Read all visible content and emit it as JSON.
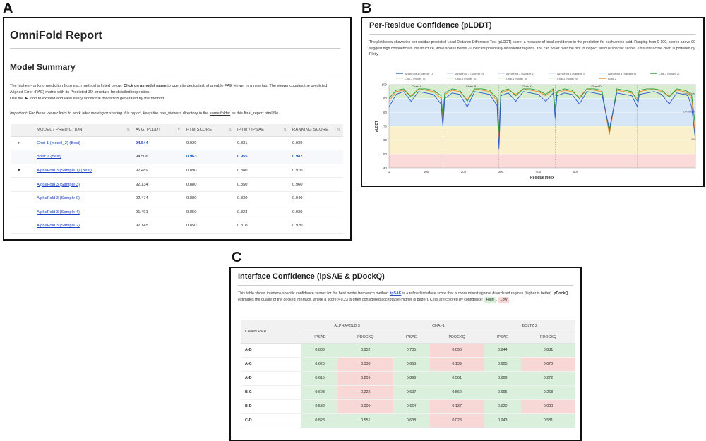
{
  "letters": {
    "a": "A",
    "b": "B",
    "c": "C"
  },
  "panel_a": {
    "title": "OmniFold Report",
    "section_title": "Model Summary",
    "desc_1": "The highest-ranking prediction from each method is listed below. ",
    "desc_bold": "Click on a model name",
    "desc_2": " to open its dedicated, shareable PAE viewer in a new tab. The viewer couples the predicted Aligned Error (PAE) matrix with its Predicted 3D structure for detailed inspection.",
    "desc_3": "Use the ► icon to expand and view every additional prediction generated by the method.",
    "note_1": "Important: For these viewer links to work after moving or sharing this report, keep the ",
    "note_code": "pae_viewers",
    "note_2": " directory in the ",
    "note_link": "same folder",
    "note_3": " as this ",
    "note_file": "final_report.html",
    "note_4": " file.",
    "columns": [
      "MODEL / PREDICTION",
      "AVG. PLDDT",
      "PTM SCORE",
      "IPTM / IPSAE",
      "RANKING SCORE"
    ],
    "rows": [
      {
        "toggle": "►",
        "name": "Chai-1 (model_2) (Best)",
        "plddt": "94.544",
        "ptm": "0.929",
        "iptm": "0.831",
        "rank": "0.939",
        "alt": false,
        "blue": [
          true,
          false,
          false,
          false
        ]
      },
      {
        "toggle": "",
        "name": "Boltz 2 (Best)",
        "plddt": "94.506",
        "ptm": "0.963",
        "iptm": "0.955",
        "rank": "0.947",
        "alt": true,
        "blue": [
          false,
          true,
          true,
          true
        ]
      },
      {
        "toggle": "▼",
        "name": "AlphaFold 3 (Sample 1) (Best)",
        "plddt": "92.489",
        "ptm": "0.890",
        "iptm": "0.880",
        "rank": "0.970",
        "alt": false,
        "blue": [
          false,
          false,
          false,
          false
        ]
      },
      {
        "toggle": "",
        "name": "AlphaFold 3 (Sample 3)",
        "plddt": "92.134",
        "ptm": "0.880",
        "iptm": "0.850",
        "rank": "0.960",
        "alt": false,
        "blue": [
          false,
          false,
          false,
          false
        ]
      },
      {
        "toggle": "",
        "name": "AlphaFold 3 (Sample 0)",
        "plddt": "92.474",
        "ptm": "0.880",
        "iptm": "0.830",
        "rank": "0.940",
        "alt": false,
        "blue": [
          false,
          false,
          false,
          false
        ]
      },
      {
        "toggle": "",
        "name": "AlphaFold 3 (Sample 4)",
        "plddt": "91.491",
        "ptm": "0.850",
        "iptm": "0.823",
        "rank": "0.930",
        "alt": false,
        "blue": [
          false,
          false,
          false,
          false
        ]
      },
      {
        "toggle": "",
        "name": "AlphaFold 3 (Sample 2)",
        "plddt": "92.145",
        "ptm": "0.850",
        "iptm": "0.810",
        "rank": "0.920",
        "alt": false,
        "blue": [
          false,
          false,
          false,
          false
        ]
      }
    ]
  },
  "panel_b": {
    "title": "Per-Residue Confidence (pLDDT)",
    "desc": "The plot below shows the per-residue predicted Local Distance Difference Test (pLDDT) score, a measure of local confidence in the prediction for each amino acid. Ranging from 0-100, scores above 90 suggest high confidence in the structure, while scores below 70 indicate potentially disordered regions. You can hover over the plot to inspect residue-specific scores. This interactive chart is powered by Plotly.",
    "legend": [
      {
        "label": "AlphaFold 3 (Sample 1)",
        "color": "#2a5ac8",
        "w": 1.4
      },
      {
        "label": "AlphaFold 3 (Sample 0)",
        "color": "#9fb8e8",
        "w": 0.8
      },
      {
        "label": "AlphaFold 3 (Sample 2)",
        "color": "#a9c2ea",
        "w": 0.8
      },
      {
        "label": "AlphaFold 3 (Sample 3)",
        "color": "#b7cdef",
        "w": 0.8
      },
      {
        "label": "AlphaFold 3 (Sample 4)",
        "color": "#c2d4f0",
        "w": 0.8
      },
      {
        "label": "Chai-1 (model_2)",
        "color": "#2e9a3a",
        "w": 1.4
      },
      {
        "label": "Chai-1 (model_0)",
        "color": "#b6dcb6",
        "w": 0.8
      },
      {
        "label": "Chai-1 (model_1)",
        "color": "#c2e2c2",
        "w": 0.8
      },
      {
        "label": "Chai-1 (model_3)",
        "color": "#cce7cc",
        "w": 0.8
      },
      {
        "label": "Chai-1 (model_4)",
        "color": "#d6ecd6",
        "w": 0.8
      },
      {
        "label": "Boltz 2",
        "color": "#f08a2a",
        "w": 1.4
      }
    ]
  },
  "chart_data": {
    "type": "line",
    "xlabel": "Residue Index",
    "ylabel": "pLDDT",
    "xlim": [
      1,
      820
    ],
    "ylim": [
      40,
      100
    ],
    "xticks": [
      1,
      100,
      200,
      300,
      400,
      500
    ],
    "yticks": [
      40,
      50,
      60,
      70,
      80,
      90,
      100
    ],
    "bands": [
      {
        "from": 90,
        "to": 100,
        "color": "#d8ecd2"
      },
      {
        "from": 70,
        "to": 90,
        "color": "#d7e6f7"
      },
      {
        "from": 50,
        "to": 70,
        "color": "#fbf0cc"
      },
      {
        "from": 40,
        "to": 50,
        "color": "#fbdada"
      }
    ],
    "chain_boundaries": [
      145,
      295,
      445,
      665
    ],
    "chain_labels": [
      {
        "label": "Chain A",
        "x": 75
      },
      {
        "label": "Chain B",
        "x": 220
      },
      {
        "label": "Chain C",
        "x": 370
      },
      {
        "label": "Chain D",
        "x": 555
      }
    ],
    "band_labels": [
      {
        "label": "Very High",
        "y": 93
      },
      {
        "label": "Confident",
        "y": 80
      },
      {
        "label": "Low",
        "y": 60
      }
    ],
    "series": [
      {
        "name": "Boltz 2",
        "color": "#f08a2a",
        "x": [
          1,
          20,
          40,
          60,
          80,
          100,
          120,
          140,
          145,
          150,
          170,
          190,
          210,
          230,
          250,
          270,
          290,
          295,
          300,
          320,
          340,
          360,
          380,
          400,
          420,
          440,
          445,
          450,
          470,
          490,
          510,
          530,
          550,
          570,
          590,
          610,
          630,
          650,
          665,
          670,
          690,
          710,
          730,
          750,
          770,
          790,
          800,
          810,
          820
        ],
        "y": [
          88,
          95,
          96,
          92,
          97,
          96,
          95,
          90,
          73,
          93,
          96,
          95,
          89,
          97,
          96,
          95,
          88,
          60,
          94,
          96,
          93,
          97,
          96,
          95,
          92,
          96,
          80,
          94,
          96,
          95,
          91,
          97,
          96,
          95,
          64,
          96,
          95,
          94,
          90,
          95,
          96,
          97,
          95,
          92,
          96,
          95,
          94,
          90,
          62
        ]
      },
      {
        "name": "Chai-1 (model_2)",
        "color": "#2e9a3a",
        "x": [
          1,
          20,
          40,
          60,
          80,
          100,
          120,
          140,
          145,
          150,
          170,
          190,
          210,
          230,
          250,
          270,
          290,
          295,
          300,
          320,
          340,
          360,
          380,
          400,
          420,
          440,
          445,
          450,
          470,
          490,
          510,
          530,
          550,
          570,
          590,
          610,
          630,
          650,
          665,
          670,
          690,
          710,
          730,
          750,
          770,
          790,
          800,
          810,
          820
        ],
        "y": [
          90,
          96,
          97,
          91,
          97,
          97,
          96,
          92,
          78,
          94,
          97,
          96,
          88,
          97,
          97,
          96,
          90,
          66,
          95,
          97,
          92,
          97,
          97,
          96,
          93,
          97,
          82,
          95,
          97,
          96,
          90,
          97,
          97,
          96,
          66,
          97,
          96,
          95,
          88,
          96,
          97,
          97,
          96,
          91,
          97,
          96,
          95,
          92,
          70
        ]
      },
      {
        "name": "AlphaFold 3 (Sample 1)",
        "color": "#2a5ac8",
        "x": [
          1,
          20,
          40,
          60,
          80,
          100,
          120,
          140,
          145,
          150,
          170,
          190,
          210,
          230,
          250,
          270,
          290,
          295,
          300,
          320,
          340,
          360,
          380,
          400,
          420,
          440,
          445,
          450,
          470,
          490,
          510,
          530,
          550,
          570,
          590,
          610,
          630,
          650,
          665,
          670,
          690,
          710,
          730,
          750,
          770,
          790,
          800,
          810,
          820
        ],
        "y": [
          84,
          93,
          95,
          88,
          95,
          94,
          93,
          86,
          70,
          90,
          94,
          93,
          84,
          95,
          94,
          93,
          85,
          54,
          92,
          94,
          88,
          95,
          94,
          93,
          88,
          94,
          76,
          92,
          94,
          93,
          86,
          95,
          94,
          93,
          68,
          94,
          93,
          92,
          84,
          93,
          94,
          95,
          93,
          86,
          94,
          93,
          92,
          84,
          60
        ]
      }
    ]
  },
  "panel_c": {
    "title": "Interface Confidence (ipSAE & pDockQ)",
    "desc_1": "This table shows interface-specific confidence scores for the best model from each method. ",
    "desc_link": "ipSAE",
    "desc_2": " is a refined interface score that is more robust against disordered regions (higher is better). ",
    "desc_bold": "pDockQ",
    "desc_3": " estimates the quality of the docked interface, where a score > 0.23 is often considered acceptable (higher is better). Cells are colored by confidence: ",
    "high": "High",
    "sep": ", ",
    "low": "Low",
    "end": ".",
    "pair_header": "CHAIN PAIR",
    "methods": [
      "ALPHAFOLD 3",
      "CHAI-1",
      "BOLTZ 2"
    ],
    "sub_headers": [
      "IPSAE",
      "PDOCKQ",
      "IPSAE",
      "PDOCKQ",
      "IPSAE",
      "PDOCKQ"
    ],
    "rows": [
      {
        "pair": "A-B",
        "vals": [
          "0.838",
          "0.852",
          "0.705",
          "0.093",
          "0.944",
          "0.881"
        ],
        "cls": [
          "h",
          "h",
          "h",
          "l",
          "h",
          "h"
        ]
      },
      {
        "pair": "A-C",
        "vals": [
          "0.620",
          "0.038",
          "0.668",
          "0.139",
          "0.665",
          "0.070"
        ],
        "cls": [
          "h",
          "l",
          "h",
          "l",
          "h",
          "l"
        ]
      },
      {
        "pair": "A-D",
        "vals": [
          "0.615",
          "0.209",
          "0.896",
          "0.561",
          "0.666",
          "0.272"
        ],
        "cls": [
          "h",
          "l",
          "h",
          "h",
          "h",
          "h"
        ]
      },
      {
        "pair": "B-C",
        "vals": [
          "0.623",
          "0.222",
          "0.697",
          "0.562",
          "0.665",
          "0.268"
        ],
        "cls": [
          "h",
          "l",
          "h",
          "h",
          "h",
          "h"
        ]
      },
      {
        "pair": "B-D",
        "vals": [
          "0.532",
          "0.000",
          "0.664",
          "0.137",
          "0.620",
          "0.000"
        ],
        "cls": [
          "h",
          "l",
          "h",
          "l",
          "h",
          "l"
        ]
      },
      {
        "pair": "C-D",
        "vals": [
          "0.828",
          "0.551",
          "0.638",
          "0.028",
          "0.943",
          "0.581"
        ],
        "cls": [
          "h",
          "h",
          "h",
          "l",
          "h",
          "h"
        ]
      }
    ]
  }
}
